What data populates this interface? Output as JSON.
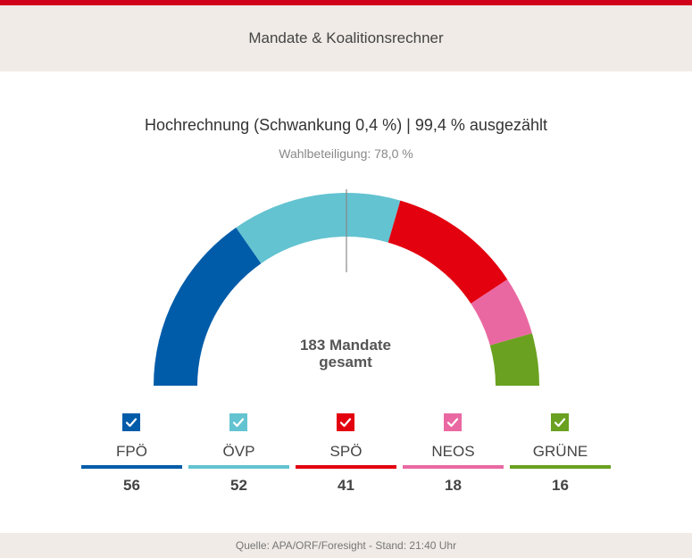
{
  "header": {
    "title": "Mandate & Koalitionsrechner"
  },
  "info": {
    "projection": "Hochrechnung (Schwankung 0,4 %) | 99,4 % ausgezählt",
    "turnout": "Wahlbeteiligung: 78,0 %"
  },
  "chart_data": {
    "type": "pie",
    "subtype": "semicircle-hemicycle",
    "total_seats": 183,
    "center_label_line1": "183 Mandate",
    "center_label_line2": "gesamt",
    "majority_marker": true,
    "categories": [
      "FPÖ",
      "ÖVP",
      "SPÖ",
      "NEOS",
      "GRÜNE"
    ],
    "values": [
      56,
      52,
      41,
      18,
      16
    ],
    "colors": [
      "#005ca9",
      "#63c3d1",
      "#e3000f",
      "#ea68a2",
      "#6aa120"
    ]
  },
  "legend": {
    "parties": [
      {
        "name": "FPÖ",
        "seats": "56",
        "checked": true
      },
      {
        "name": "ÖVP",
        "seats": "52",
        "checked": true
      },
      {
        "name": "SPÖ",
        "seats": "41",
        "checked": true
      },
      {
        "name": "NEOS",
        "seats": "18",
        "checked": true
      },
      {
        "name": "GRÜNE",
        "seats": "16",
        "checked": true
      }
    ]
  },
  "footer": {
    "source": "Quelle: APA/ORF/Foresight - Stand: 21:40 Uhr"
  }
}
